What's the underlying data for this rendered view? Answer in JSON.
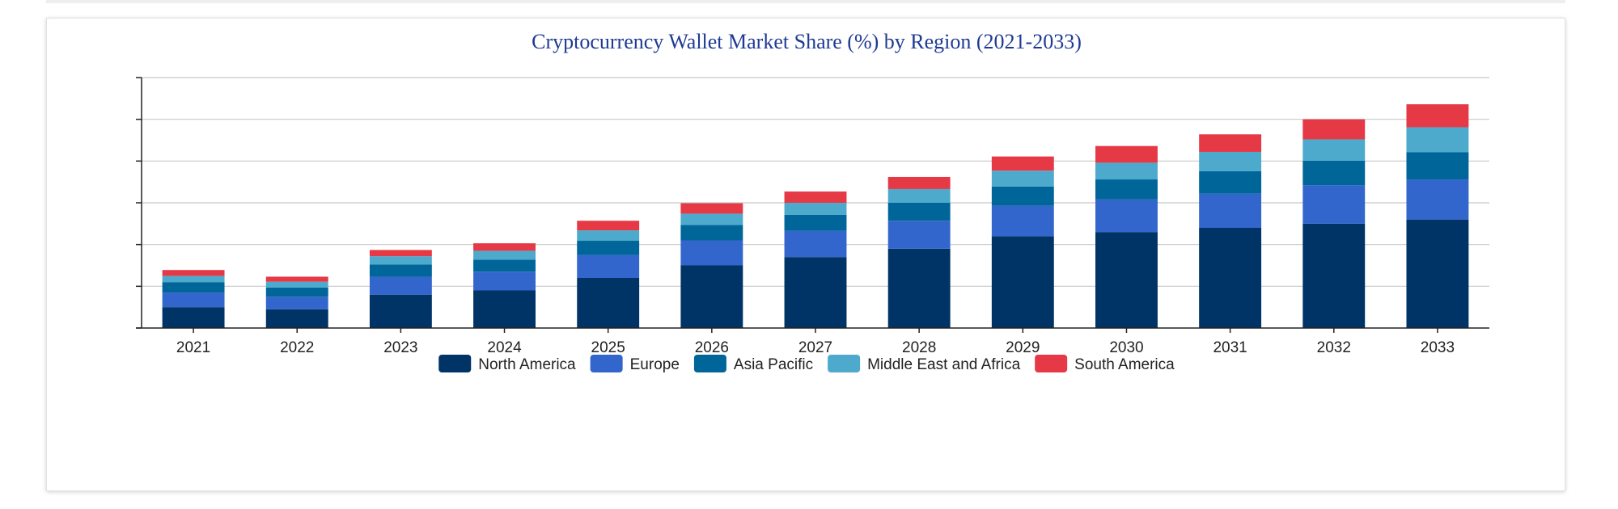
{
  "chart_data": {
    "type": "bar",
    "stacked": true,
    "title": "Cryptocurrency Wallet Market Share (%) by Region (2021-2033)",
    "xlabel": "",
    "ylabel": "",
    "ylim": [
      0,
      6
    ],
    "grid": true,
    "legend_position": "bottom",
    "categories": [
      "2021",
      "2022",
      "2023",
      "2024",
      "2025",
      "2026",
      "2027",
      "2028",
      "2029",
      "2030",
      "2031",
      "2032",
      "2033"
    ],
    "series": [
      {
        "name": "North America",
        "color": "#003366",
        "values": [
          0.5,
          0.45,
          0.8,
          0.9,
          1.2,
          1.5,
          1.7,
          1.9,
          2.2,
          2.3,
          2.4,
          2.5,
          2.6
        ]
      },
      {
        "name": "Europe",
        "color": "#3366cc",
        "values": [
          0.35,
          0.3,
          0.43,
          0.45,
          0.55,
          0.6,
          0.63,
          0.67,
          0.73,
          0.78,
          0.82,
          0.92,
          0.96
        ]
      },
      {
        "name": "Asia Pacific",
        "color": "#006699",
        "values": [
          0.25,
          0.22,
          0.29,
          0.29,
          0.34,
          0.37,
          0.38,
          0.43,
          0.46,
          0.48,
          0.54,
          0.59,
          0.65
        ]
      },
      {
        "name": "Middle East and Africa",
        "color": "#4daacc",
        "values": [
          0.15,
          0.14,
          0.2,
          0.21,
          0.25,
          0.27,
          0.29,
          0.33,
          0.38,
          0.4,
          0.46,
          0.51,
          0.6
        ]
      },
      {
        "name": "South America",
        "color": "#e63946",
        "values": [
          0.14,
          0.12,
          0.15,
          0.18,
          0.23,
          0.25,
          0.27,
          0.29,
          0.34,
          0.4,
          0.42,
          0.48,
          0.55
        ]
      }
    ]
  }
}
